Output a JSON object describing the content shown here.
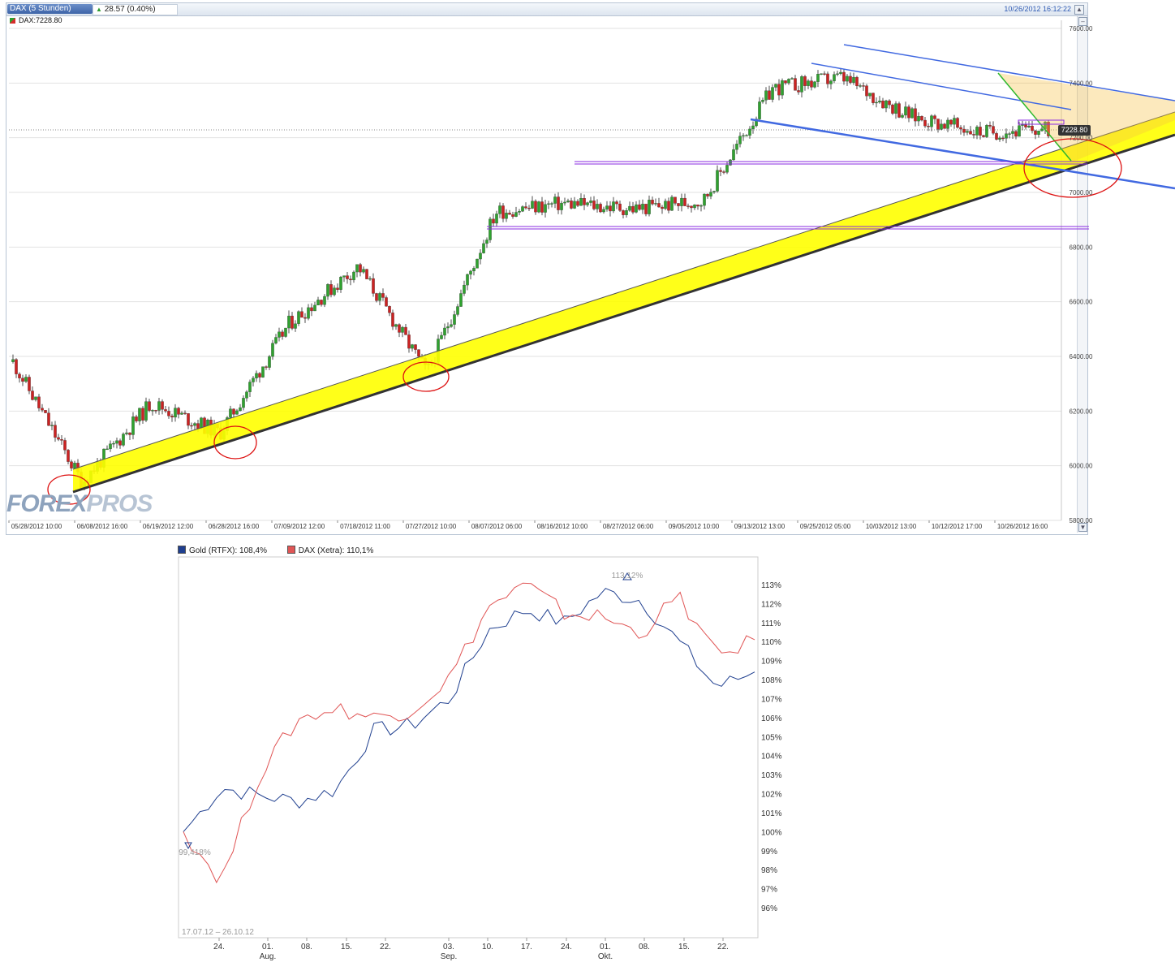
{
  "top_chart": {
    "symbol_tab": "DAX (5 Stunden)",
    "change": "28.57 (0.40%)",
    "timestamp": "10/26/2012 16:12:22",
    "price_label": "DAX:7228.80",
    "current_price_tag": "7228.80",
    "watermark_forex": "FOREX",
    "watermark_pros": "PROS",
    "colors": {
      "up": "#2fa22f",
      "down": "#cc2222",
      "channel": "#ffff00",
      "trendline_blue": "#4169e1",
      "support": "#8a2be2",
      "circle": "#dd1111",
      "triangle": "#f5c142"
    }
  },
  "bottom_chart": {
    "legend": [
      {
        "label": "Gold (RTFX): 108,4%",
        "color": "#1f3f8f"
      },
      {
        "label": "DAX (Xetra): 110,1%",
        "color": "#e05555"
      }
    ],
    "max_label": "113,12%",
    "min_label": "99,418%",
    "date_range": "17.07.12 – 26.10.12",
    "x_ticks": [
      "24.",
      "01.",
      "08.",
      "15.",
      "22.",
      "03.",
      "10.",
      "17.",
      "24.",
      "01.",
      "08.",
      "15.",
      "22."
    ],
    "month_labels": [
      "Aug.",
      "Sep.",
      "Okt."
    ],
    "y_ticks": [
      "113%",
      "112%",
      "111%",
      "110%",
      "109%",
      "108%",
      "107%",
      "106%",
      "105%",
      "104%",
      "103%",
      "102%",
      "101%",
      "100%",
      "99%",
      "98%",
      "97%",
      "96%"
    ]
  },
  "chart_data": [
    {
      "type": "line",
      "title": "DAX (5 Stunden)",
      "note": "candlestick chart approximated by closing values",
      "x": [
        "05/28/2012 10:00",
        "06/08/2012 16:00",
        "06/19/2012 12:00",
        "06/28/2012 16:00",
        "07/09/2012 12:00",
        "07/18/2012 11:00",
        "07/27/2012 10:00",
        "08/07/2012 06:00",
        "08/16/2012 10:00",
        "08/27/2012 06:00",
        "09/05/2012 10:00",
        "09/13/2012 13:00",
        "09/25/2012 05:00",
        "10/03/2012 13:00",
        "10/12/2012 17:00",
        "10/26/2012 16:00"
      ],
      "y_ticks": [
        "7600.00",
        "7400.00",
        "7200.00",
        "7000.00",
        "6800.00",
        "6600.00",
        "6400.00",
        "6200.00",
        "6000.00",
        "5800.00"
      ],
      "series": [
        {
          "name": "DAX",
          "values": [
            6380,
            5940,
            6230,
            6120,
            6520,
            6730,
            6340,
            6930,
            6960,
            6940,
            6970,
            7380,
            7420,
            7280,
            7220,
            7228.8
          ]
        }
      ],
      "ylim": [
        5800,
        7600
      ]
    },
    {
      "type": "line",
      "x": [
        "17.07",
        "24.07",
        "31.07",
        "07.08",
        "14.08",
        "21.08",
        "28.08",
        "03.09",
        "10.09",
        "17.09",
        "24.09",
        "01.10",
        "08.10",
        "15.10",
        "22.10",
        "26.10"
      ],
      "series": [
        {
          "name": "Gold (RTFX): 108,4%",
          "values": [
            100.0,
            102.3,
            101.9,
            101.6,
            102.2,
            105.3,
            105.6,
            107.0,
            110.6,
            111.7,
            111.0,
            112.6,
            112.2,
            110.0,
            107.6,
            108.4
          ]
        },
        {
          "name": "DAX (Xetra): 110,1%",
          "values": [
            100.0,
            97.4,
            103.0,
            105.9,
            106.5,
            106.0,
            106.4,
            108.1,
            111.8,
            113.0,
            111.5,
            111.3,
            110.4,
            112.4,
            109.2,
            110.1
          ]
        }
      ],
      "ylim": [
        95.5,
        113.5
      ]
    }
  ]
}
